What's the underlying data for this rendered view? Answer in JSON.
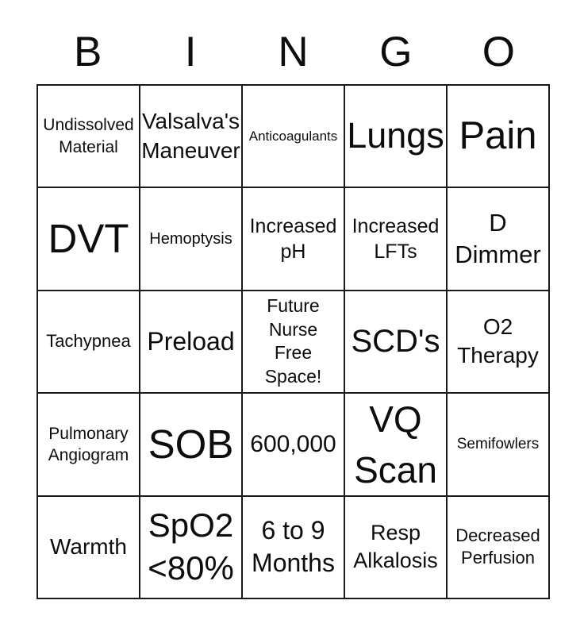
{
  "header": {
    "letters": [
      "B",
      "I",
      "N",
      "G",
      "O"
    ]
  },
  "grid": {
    "rows": [
      [
        "Undissolved\nMaterial",
        "Valsalva's\nManeuver",
        "Anticoagulants",
        "Lungs",
        "Pain"
      ],
      [
        "DVT",
        "Hemoptysis",
        "Increased\npH",
        "Increased\nLFTs",
        "D\nDimmer"
      ],
      [
        "Tachypnea",
        "Preload",
        "Future\nNurse\nFree\nSpace!",
        "SCD's",
        "O2\nTherapy"
      ],
      [
        "Pulmonary\nAngiogram",
        "SOB",
        "600,000",
        "VQ\nScan",
        "Semifowlers"
      ],
      [
        "Warmth",
        "SpO2\n<80%",
        "6 to 9\nMonths",
        "Resp\nAlkalosis",
        "Decreased\nPerfusion"
      ]
    ]
  },
  "colors": {
    "text": "#000000",
    "border": "#1a1a1a",
    "background": "#ffffff"
  }
}
